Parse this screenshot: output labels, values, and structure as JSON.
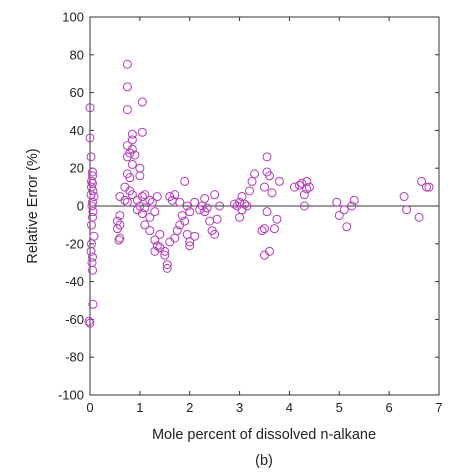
{
  "chart_data": {
    "type": "scatter",
    "xlabel": "Mole percent of dissolved n-alkane",
    "ylabel": "Relative Error (%)",
    "caption": "(b)",
    "xlim": [
      0,
      7
    ],
    "ylim": [
      -100,
      100
    ],
    "xticks": [
      0,
      1,
      2,
      3,
      4,
      5,
      6,
      7
    ],
    "yticks": [
      -100,
      -80,
      -60,
      -40,
      -20,
      0,
      20,
      40,
      60,
      80,
      100
    ],
    "grid": false,
    "zero_line": true,
    "marker": "open-circle",
    "marker_color": "#b23ab8",
    "points": [
      [
        0.0,
        52
      ],
      [
        0.0,
        36
      ],
      [
        0.02,
        26
      ],
      [
        0.05,
        18
      ],
      [
        0.05,
        16
      ],
      [
        0.03,
        13
      ],
      [
        0.05,
        12
      ],
      [
        0.03,
        10
      ],
      [
        0.06,
        8
      ],
      [
        0.02,
        6
      ],
      [
        0.08,
        5
      ],
      [
        0.05,
        2
      ],
      [
        0.04,
        0
      ],
      [
        0.06,
        -3
      ],
      [
        0.05,
        -6
      ],
      [
        0.03,
        -10
      ],
      [
        0.08,
        -16
      ],
      [
        0.03,
        -20
      ],
      [
        0.02,
        -24
      ],
      [
        0.05,
        -27
      ],
      [
        0.04,
        -30
      ],
      [
        0.05,
        -34
      ],
      [
        0.06,
        -52
      ],
      [
        -0.02,
        -61
      ],
      [
        0.0,
        -62
      ],
      [
        0.7,
        3
      ],
      [
        0.6,
        -5
      ],
      [
        0.55,
        -8
      ],
      [
        0.6,
        -10
      ],
      [
        0.55,
        -12
      ],
      [
        0.6,
        -17
      ],
      [
        0.58,
        -18
      ],
      [
        0.6,
        5
      ],
      [
        0.7,
        10
      ],
      [
        0.8,
        8
      ],
      [
        0.85,
        6
      ],
      [
        0.75,
        2
      ],
      [
        0.75,
        75
      ],
      [
        0.75,
        63
      ],
      [
        0.75,
        51
      ],
      [
        0.85,
        38
      ],
      [
        0.85,
        35
      ],
      [
        0.75,
        32
      ],
      [
        0.85,
        30
      ],
      [
        0.8,
        28
      ],
      [
        0.75,
        26
      ],
      [
        0.9,
        27
      ],
      [
        0.85,
        22
      ],
      [
        0.75,
        17
      ],
      [
        0.8,
        15
      ],
      [
        1.05,
        55
      ],
      [
        1.05,
        39
      ],
      [
        1.0,
        20
      ],
      [
        1.0,
        16
      ],
      [
        1.1,
        6
      ],
      [
        1.05,
        5
      ],
      [
        0.95,
        3
      ],
      [
        1.0,
        0
      ],
      [
        1.1,
        -1
      ],
      [
        0.95,
        -2
      ],
      [
        1.05,
        -4
      ],
      [
        1.2,
        3
      ],
      [
        1.25,
        2
      ],
      [
        1.3,
        -3
      ],
      [
        1.35,
        5
      ],
      [
        1.2,
        -6
      ],
      [
        1.1,
        -10
      ],
      [
        1.2,
        -13
      ],
      [
        1.4,
        -15
      ],
      [
        1.3,
        -18
      ],
      [
        1.35,
        -21
      ],
      [
        1.3,
        -24
      ],
      [
        1.4,
        -22
      ],
      [
        1.5,
        -24
      ],
      [
        1.5,
        -26
      ],
      [
        1.55,
        -31
      ],
      [
        1.55,
        -33
      ],
      [
        1.6,
        -19
      ],
      [
        1.7,
        -17
      ],
      [
        1.75,
        -13
      ],
      [
        1.8,
        -10
      ],
      [
        1.6,
        5
      ],
      [
        1.65,
        3
      ],
      [
        1.7,
        6
      ],
      [
        1.8,
        2
      ],
      [
        1.9,
        13
      ],
      [
        1.95,
        0
      ],
      [
        1.85,
        -5
      ],
      [
        1.9,
        -8
      ],
      [
        2.0,
        -3
      ],
      [
        1.95,
        -15
      ],
      [
        2.0,
        -19
      ],
      [
        2.0,
        -21
      ],
      [
        2.1,
        -16
      ],
      [
        2.1,
        2
      ],
      [
        2.2,
        -2
      ],
      [
        2.25,
        0
      ],
      [
        2.3,
        4
      ],
      [
        2.3,
        -3
      ],
      [
        2.4,
        -8
      ],
      [
        2.45,
        -13
      ],
      [
        2.5,
        -15
      ],
      [
        2.5,
        6
      ],
      [
        2.35,
        -1
      ],
      [
        2.55,
        -7
      ],
      [
        2.6,
        0
      ],
      [
        2.9,
        1
      ],
      [
        2.95,
        0
      ],
      [
        3.0,
        2
      ],
      [
        3.05,
        5
      ],
      [
        3.0,
        -6
      ],
      [
        3.05,
        -2
      ],
      [
        3.1,
        1
      ],
      [
        3.2,
        8
      ],
      [
        3.25,
        13
      ],
      [
        3.3,
        17
      ],
      [
        3.45,
        -13
      ],
      [
        3.5,
        10
      ],
      [
        3.55,
        26
      ],
      [
        3.55,
        18
      ],
      [
        3.55,
        -3
      ],
      [
        3.5,
        -12
      ],
      [
        3.6,
        16
      ],
      [
        3.65,
        7
      ],
      [
        3.7,
        -12
      ],
      [
        3.75,
        -7
      ],
      [
        3.8,
        13
      ],
      [
        3.6,
        -24
      ],
      [
        3.5,
        -26
      ],
      [
        4.1,
        10
      ],
      [
        4.2,
        11
      ],
      [
        4.25,
        12
      ],
      [
        4.35,
        9
      ],
      [
        4.35,
        13
      ],
      [
        4.4,
        10
      ],
      [
        4.3,
        6
      ],
      [
        4.95,
        2
      ],
      [
        5.0,
        -5
      ],
      [
        5.1,
        -2
      ],
      [
        5.15,
        -11
      ],
      [
        5.25,
        0
      ],
      [
        5.3,
        3
      ],
      [
        6.3,
        5
      ],
      [
        6.35,
        -2
      ],
      [
        6.6,
        -6
      ],
      [
        6.65,
        13
      ],
      [
        6.75,
        10
      ],
      [
        6.8,
        10
      ],
      [
        3.15,
        0
      ],
      [
        4.3,
        0
      ]
    ]
  }
}
